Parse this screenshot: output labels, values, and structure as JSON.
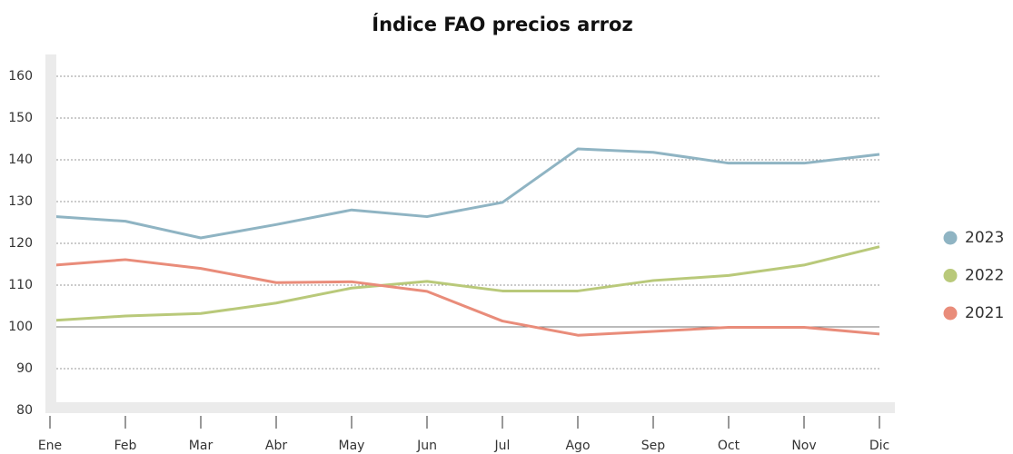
{
  "chart_data": {
    "type": "line",
    "title": "Índice FAO precios arroz",
    "categories": [
      "Ene",
      "Feb",
      "Mar",
      "Abr",
      "May",
      "Jun",
      "Jul",
      "Ago",
      "Sep",
      "Oct",
      "Nov",
      "Dic"
    ],
    "series": [
      {
        "name": "2023",
        "color": "#8fb4c3",
        "values": [
          126.5,
          125.3,
          121.3,
          124.5,
          128,
          126.4,
          129.8,
          142.6,
          141.8,
          139.2,
          139.2,
          141.3
        ]
      },
      {
        "name": "2022",
        "color": "#b9c97a",
        "values": [
          101.5,
          102.6,
          103.2,
          105.7,
          109.3,
          110.9,
          108.6,
          108.6,
          111.1,
          112.3,
          114.8,
          119.2
        ]
      },
      {
        "name": "2021",
        "color": "#e98c7a",
        "values": [
          114.7,
          116.1,
          114,
          110.6,
          110.8,
          108.5,
          101.4,
          98,
          98.9,
          99.9,
          99.9,
          98.3
        ]
      }
    ],
    "ylim": [
      80,
      160
    ],
    "yticks": [
      80,
      90,
      100,
      110,
      120,
      130,
      140,
      150,
      160
    ],
    "reference_line": 100,
    "grid": true,
    "legend": "right"
  }
}
